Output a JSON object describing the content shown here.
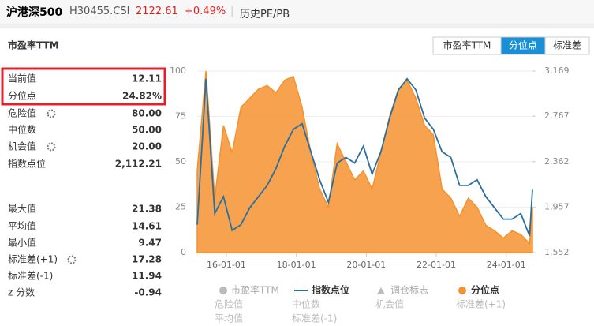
{
  "header": {
    "title": "沪港深500",
    "code": "H30455.CSI",
    "price": "2122.61",
    "change": "+0.49%",
    "link": "历史PE/PB"
  },
  "panel": {
    "title": "市盈率TTM",
    "tabs": [
      "市盈率TTM",
      "分位点",
      "标准差"
    ],
    "active_tab": 1
  },
  "stats": {
    "rows": [
      [
        "当前值",
        "12.11"
      ],
      [
        "分位点",
        "24.82%"
      ],
      [
        "危险值",
        "80.00"
      ],
      [
        "中位数",
        "50.00"
      ],
      [
        "机会值",
        "20.00"
      ],
      [
        "指数点位",
        "2,112.21"
      ],
      [
        "最大值",
        "21.38"
      ],
      [
        "平均值",
        "14.61"
      ],
      [
        "最小值",
        "9.47"
      ],
      [
        "标准差(+1)",
        "17.28"
      ],
      [
        "标准差(-1)",
        "11.94"
      ],
      [
        "z 分数",
        "-0.94"
      ]
    ]
  },
  "chart_data": {
    "type": "line",
    "x": [
      "15-03-01",
      "15-06-01",
      "15-09-01",
      "15-12-01",
      "16-03-01",
      "16-06-01",
      "16-09-01",
      "16-12-01",
      "17-03-01",
      "17-06-01",
      "17-09-01",
      "17-12-01",
      "18-03-01",
      "18-06-01",
      "18-09-01",
      "18-12-01",
      "19-03-01",
      "19-06-01",
      "19-09-01",
      "19-12-01",
      "20-03-01",
      "20-06-01",
      "20-09-01",
      "20-12-01",
      "21-03-01",
      "21-06-01",
      "21-09-01",
      "21-12-01",
      "22-03-01",
      "22-06-01",
      "22-09-01",
      "22-12-01",
      "23-03-01",
      "23-06-01",
      "23-09-01",
      "23-12-01",
      "24-03-01",
      "24-06-01",
      "24-09-01",
      "24-10-01"
    ],
    "xlim": [
      "15-03-01",
      "24-10-01"
    ],
    "xticks": [
      "16-01-01",
      "18-01-01",
      "20-01-01",
      "22-01-01",
      "24-01-01"
    ],
    "ylim": [
      0,
      100
    ],
    "yticks": [
      0,
      25,
      50,
      75,
      100
    ],
    "y2lim": [
      1552,
      3169
    ],
    "y2ticks": [
      {
        "value": 1552,
        "label": "1,552"
      },
      {
        "value": 1957,
        "label": "1,957"
      },
      {
        "value": 2362,
        "label": "2,362"
      },
      {
        "value": 2767,
        "label": "2,767"
      },
      {
        "value": 3169,
        "label": "3,169"
      }
    ],
    "series": [
      {
        "name": "分位点",
        "color": "#f5922f",
        "values": [
          45,
          100,
          30,
          70,
          55,
          80,
          85,
          90,
          92,
          88,
          95,
          97,
          80,
          55,
          35,
          25,
          60,
          50,
          40,
          45,
          35,
          55,
          75,
          90,
          95,
          85,
          70,
          65,
          35,
          30,
          20,
          30,
          25,
          15,
          12,
          8,
          12,
          10,
          5,
          25
        ]
      },
      {
        "name": "指数点位",
        "color": "#2a6f9e",
        "axis": "y2",
        "values": [
          1800,
          3100,
          1900,
          2050,
          1750,
          1800,
          1950,
          2050,
          2150,
          2300,
          2500,
          2650,
          2700,
          2450,
          2200,
          2000,
          2350,
          2400,
          2350,
          2500,
          2250,
          2450,
          2750,
          3000,
          3100,
          3000,
          2750,
          2650,
          2450,
          2400,
          2150,
          2150,
          2200,
          2050,
          1950,
          1850,
          1850,
          1900,
          1700,
          2112
        ]
      }
    ],
    "inactive_legend": [
      "市盈率TTM",
      "调仓标志",
      "危险值",
      "中位数",
      "机会值",
      "标准差(+1)",
      "平均值",
      "标准差(-1)"
    ]
  }
}
